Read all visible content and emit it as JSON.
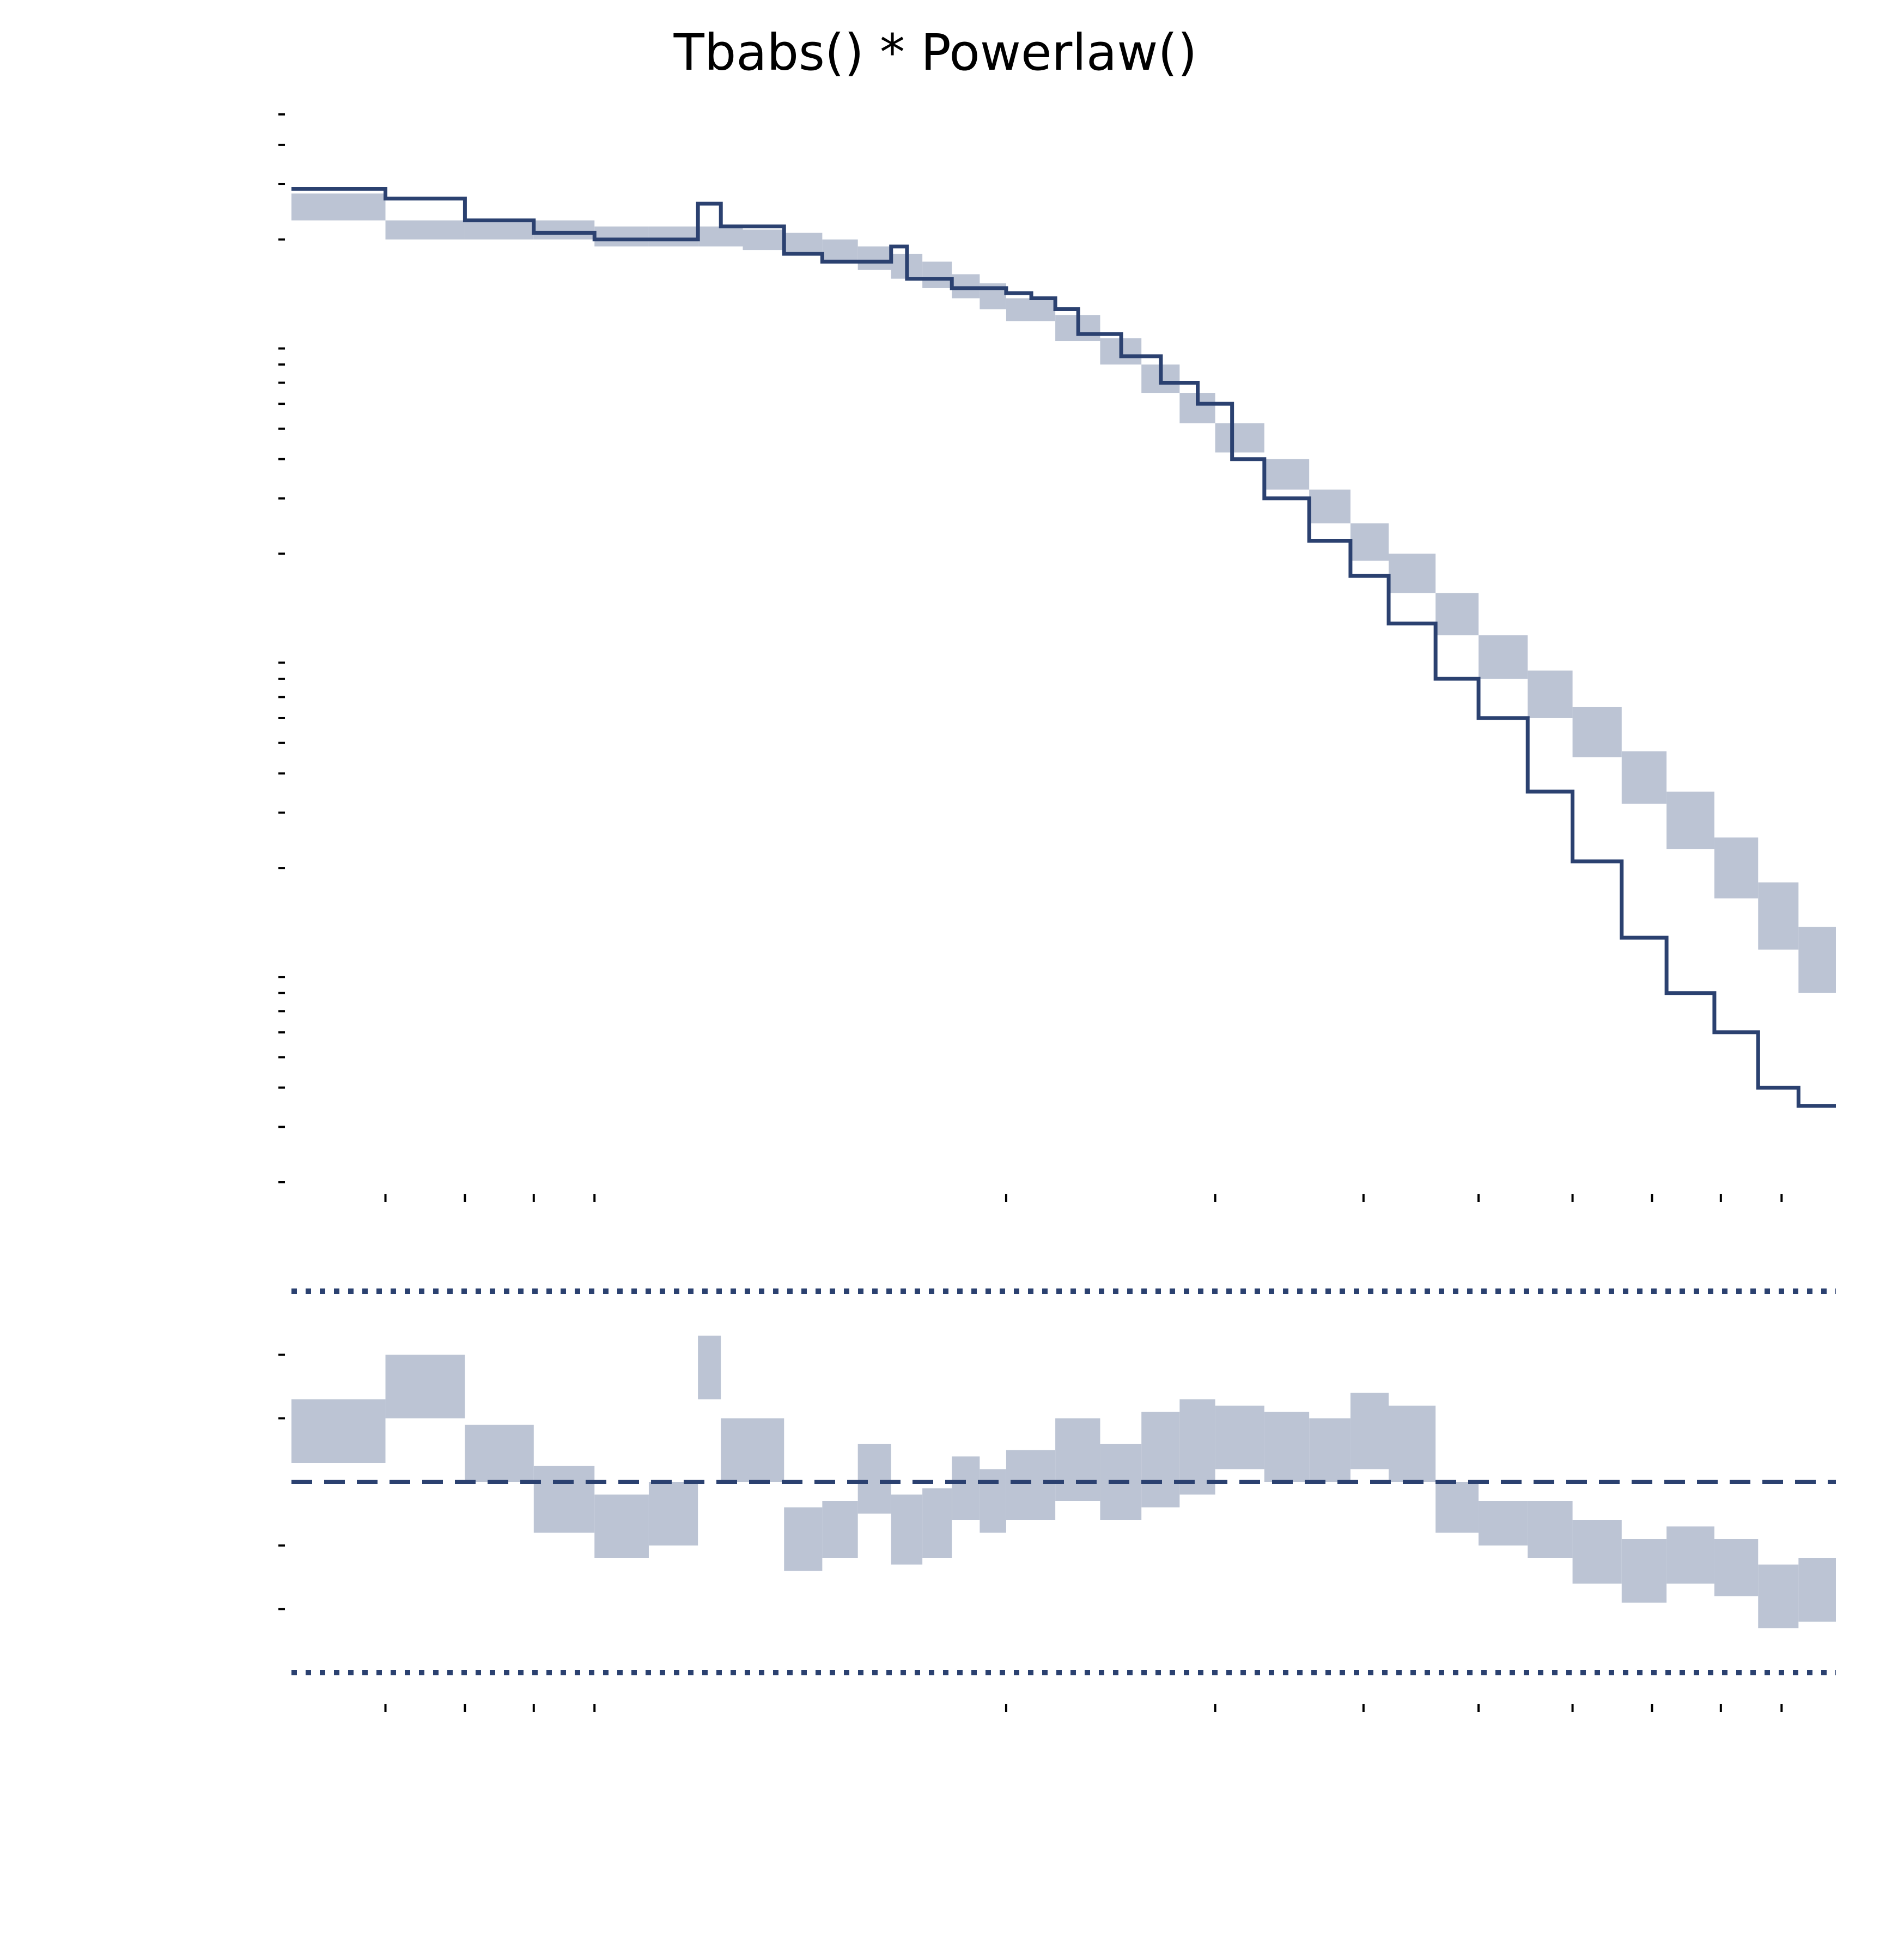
{
  "chart_data": [
    {
      "panel": "spectrum",
      "type": "line",
      "title": "Tbabs() * Powerlaw()",
      "xlabel": "",
      "ylabel": "",
      "xscale": "log",
      "yscale": "log",
      "grid": false,
      "legend": "none",
      "xlim": [
        0.5,
        10
      ],
      "ylim": [
        0.0002,
        0.5
      ],
      "colors": {
        "data": "#2b4170",
        "band": "#bcc4d4"
      },
      "series": [
        {
          "name": "",
          "kind": "data-step",
          "x": [
            0.5,
            0.6,
            0.7,
            0.8,
            0.9,
            1.0,
            1.1,
            1.15,
            1.3,
            1.4,
            1.5,
            1.6,
            1.65,
            1.8,
            1.9,
            2.0,
            2.1,
            2.2,
            2.3,
            2.5,
            2.7,
            2.9,
            3.1,
            3.3,
            3.6,
            3.9,
            4.2,
            4.6,
            5.0,
            5.5,
            6.0,
            6.6,
            7.2,
            7.9,
            8.6,
            9.3,
            10.0
          ],
          "y": [
            0.29,
            0.27,
            0.23,
            0.21,
            0.2,
            0.2,
            0.26,
            0.22,
            0.18,
            0.17,
            0.17,
            0.19,
            0.15,
            0.14,
            0.14,
            0.135,
            0.13,
            0.12,
            0.1,
            0.085,
            0.07,
            0.06,
            0.04,
            0.03,
            0.022,
            0.017,
            0.012,
            0.008,
            0.006,
            0.0035,
            0.0021,
            0.0012,
            0.0008,
            0.0006,
            0.0004,
            0.00035,
            0.00035
          ]
        },
        {
          "name": "",
          "kind": "model-band",
          "x": [
            0.5,
            0.6,
            0.7,
            0.8,
            0.9,
            1.0,
            1.1,
            1.2,
            1.3,
            1.4,
            1.5,
            1.6,
            1.7,
            1.8,
            1.9,
            2.0,
            2.2,
            2.4,
            2.6,
            2.8,
            3.0,
            3.3,
            3.6,
            3.9,
            4.2,
            4.6,
            5.0,
            5.5,
            6.0,
            6.6,
            7.2,
            7.9,
            8.6,
            9.3,
            10.0
          ],
          "y_low": [
            0.23,
            0.2,
            0.2,
            0.2,
            0.19,
            0.19,
            0.19,
            0.185,
            0.18,
            0.17,
            0.16,
            0.15,
            0.14,
            0.13,
            0.12,
            0.11,
            0.095,
            0.08,
            0.065,
            0.052,
            0.042,
            0.032,
            0.025,
            0.019,
            0.015,
            0.011,
            0.008,
            0.006,
            0.0045,
            0.0032,
            0.0023,
            0.0016,
            0.0011,
            0.0008,
            0.0006
          ],
          "y_high": [
            0.28,
            0.23,
            0.23,
            0.23,
            0.22,
            0.22,
            0.22,
            0.215,
            0.21,
            0.2,
            0.19,
            0.18,
            0.17,
            0.155,
            0.145,
            0.13,
            0.115,
            0.097,
            0.08,
            0.065,
            0.052,
            0.04,
            0.032,
            0.025,
            0.02,
            0.015,
            0.011,
            0.0085,
            0.0065,
            0.0047,
            0.0035,
            0.0025,
            0.0018,
            0.0013,
            0.001
          ]
        }
      ]
    },
    {
      "panel": "residuals",
      "type": "area",
      "title": "",
      "xlabel": "",
      "ylabel": "",
      "xscale": "log",
      "grid": false,
      "legend": "none",
      "xlim": [
        0.5,
        10
      ],
      "ylim": [
        -3,
        3
      ],
      "zero_line": 0,
      "limit_lines": [
        -3,
        3
      ],
      "colors": {
        "lines": "#2b4170",
        "band": "#bcc4d4"
      },
      "series": [
        {
          "name": "",
          "x": [
            0.5,
            0.6,
            0.7,
            0.8,
            0.9,
            1.0,
            1.1,
            1.15,
            1.3,
            1.4,
            1.5,
            1.6,
            1.7,
            1.8,
            1.9,
            2.0,
            2.2,
            2.4,
            2.6,
            2.8,
            3.0,
            3.3,
            3.6,
            3.9,
            4.2,
            4.6,
            5.0,
            5.5,
            6.0,
            6.6,
            7.2,
            7.9,
            8.6,
            9.3,
            10.0
          ],
          "y_low": [
            0.3,
            1.0,
            0.0,
            -0.8,
            -1.2,
            -1.0,
            1.3,
            0.0,
            -1.4,
            -1.2,
            -0.5,
            -1.3,
            -1.2,
            -0.6,
            -0.8,
            -0.6,
            -0.3,
            -0.6,
            -0.4,
            -0.2,
            0.2,
            0.0,
            0.0,
            0.2,
            0.0,
            -0.8,
            -1.0,
            -1.2,
            -1.6,
            -1.9,
            -1.6,
            -1.8,
            -2.3,
            -2.2,
            -2.1
          ],
          "y_high": [
            1.3,
            2.0,
            0.9,
            0.25,
            -0.2,
            0.0,
            2.3,
            1.0,
            -0.4,
            -0.3,
            0.6,
            -0.2,
            -0.1,
            0.4,
            0.2,
            0.5,
            1.0,
            0.6,
            1.1,
            1.3,
            1.2,
            1.1,
            1.0,
            1.4,
            1.2,
            0.0,
            -0.3,
            -0.3,
            -0.6,
            -0.9,
            -0.7,
            -0.9,
            -1.3,
            -1.2,
            -1.1
          ]
        }
      ]
    }
  ]
}
